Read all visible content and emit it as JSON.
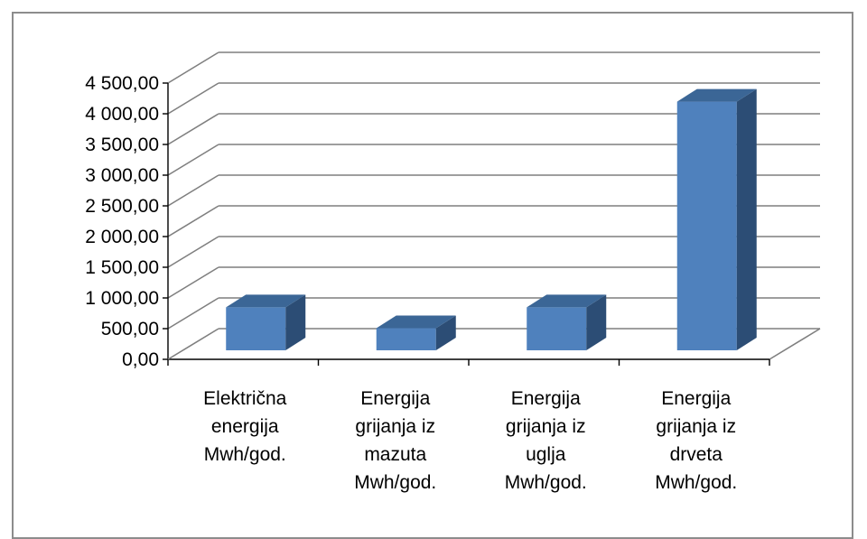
{
  "chart_data": {
    "type": "bar",
    "categories": [
      [
        "Električna",
        "energija",
        "Mwh/god."
      ],
      [
        "Energija",
        "grijanja iz",
        "mazuta",
        "Mwh/god."
      ],
      [
        "Energija",
        "grijanja iz",
        "uglja",
        "Mwh/god."
      ],
      [
        "Energija",
        "grijanja iz",
        "drveta",
        "Mwh/god."
      ]
    ],
    "values": [
      700,
      360,
      700,
      4050
    ],
    "yticks": [
      "0,00",
      "500,00",
      "1 000,00",
      "1 500,00",
      "2 000,00",
      "2 500,00",
      "3 000,00",
      "3 500,00",
      "4 000,00",
      "4 500,00"
    ],
    "ylim": [
      0,
      4500
    ],
    "title": "",
    "xlabel": "",
    "ylabel": "",
    "grid": true,
    "bar_style": "3d-column",
    "colors": {
      "bar_front": "#4f81bd",
      "bar_side": "#2c4d75",
      "bar_top": "#3b6696",
      "grid": "#7f7f7f",
      "frame": "#8c8c8c"
    }
  }
}
